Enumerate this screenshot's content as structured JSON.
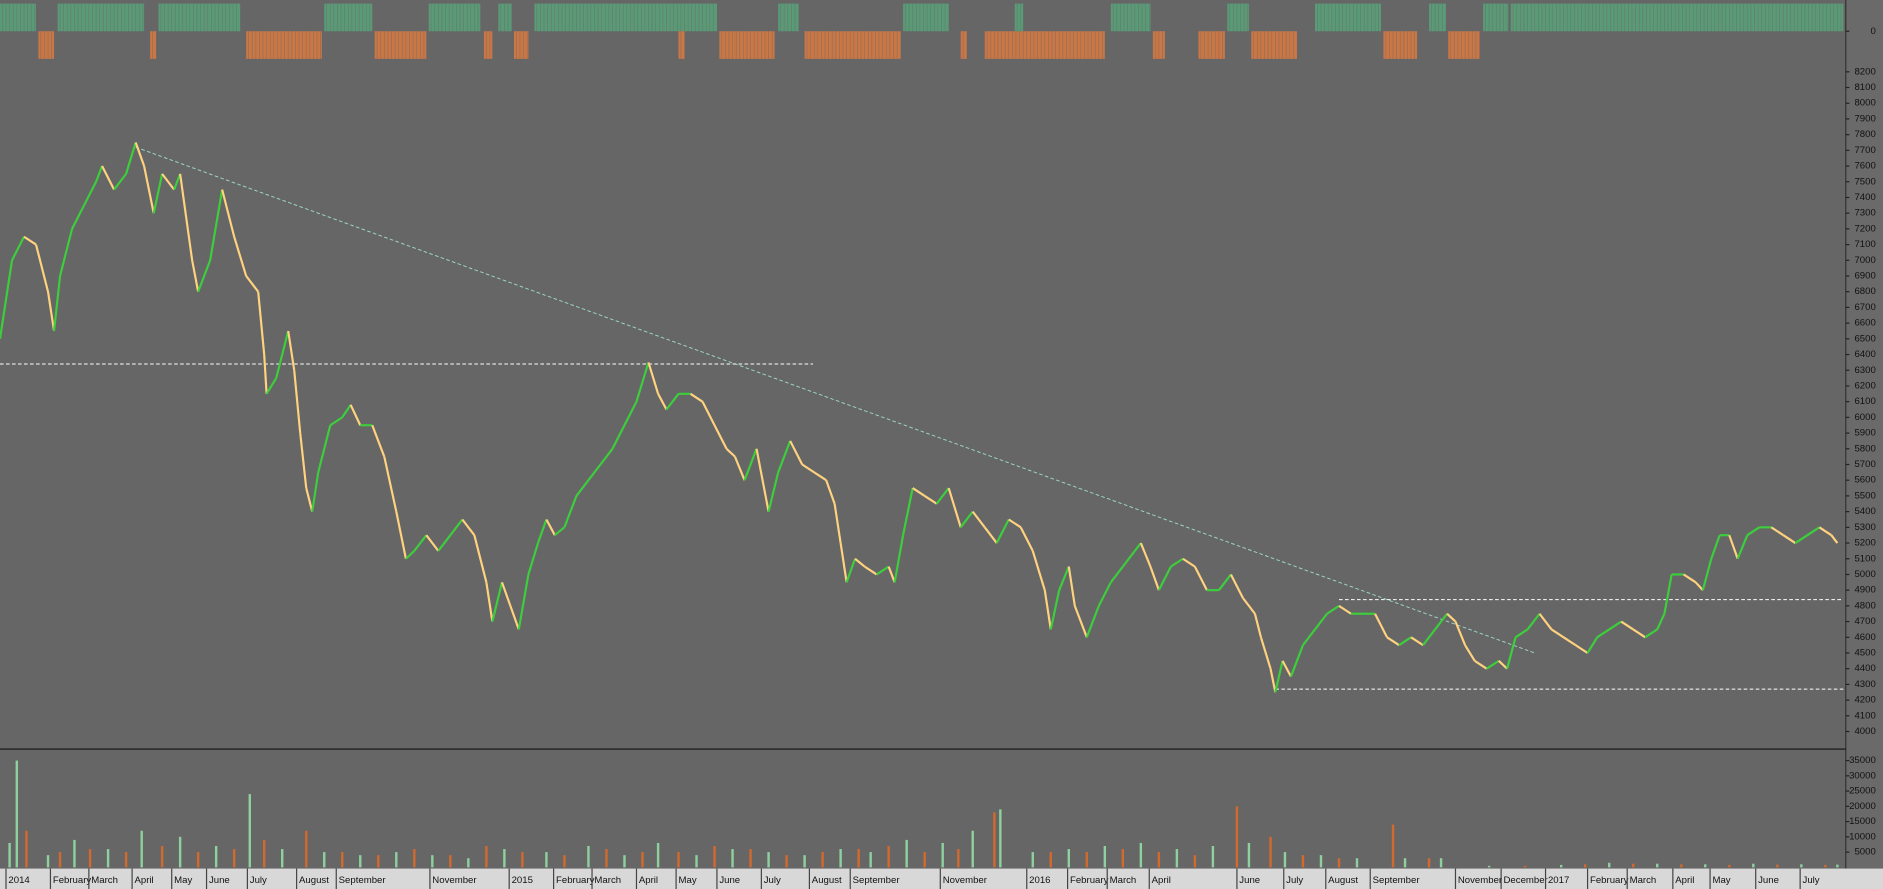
{
  "chart_data": [
    {
      "type": "signal",
      "panel": "top",
      "ylim": [
        -1,
        1
      ],
      "yticks": [
        0
      ],
      "up_color": "#5a9e78",
      "down_color": "#d27843",
      "ranges": [
        {
          "x": [
            0,
            30
          ],
          "value": 1
        },
        {
          "x": [
            32,
            45
          ],
          "value": -1
        },
        {
          "x": [
            48,
            120
          ],
          "value": 1
        },
        {
          "x": [
            125,
            130
          ],
          "value": -1
        },
        {
          "x": [
            132,
            200
          ],
          "value": 1
        },
        {
          "x": [
            205,
            268
          ],
          "value": -1
        },
        {
          "x": [
            270,
            310
          ],
          "value": 1
        },
        {
          "x": [
            312,
            355
          ],
          "value": -1
        },
        {
          "x": [
            357,
            400
          ],
          "value": 1
        },
        {
          "x": [
            403,
            410
          ],
          "value": -1
        },
        {
          "x": [
            415,
            426
          ],
          "value": 1
        },
        {
          "x": [
            428,
            440
          ],
          "value": -1
        },
        {
          "x": [
            445,
            597
          ],
          "value": 1
        },
        {
          "x": [
            565,
            570
          ],
          "value": -1
        },
        {
          "x": [
            599,
            645
          ],
          "value": -1
        },
        {
          "x": [
            648,
            665
          ],
          "value": 1
        },
        {
          "x": [
            670,
            750
          ],
          "value": -1
        },
        {
          "x": [
            752,
            790
          ],
          "value": 1
        },
        {
          "x": [
            800,
            805
          ],
          "value": -1
        },
        {
          "x": [
            820,
            920
          ],
          "value": -1
        },
        {
          "x": [
            845,
            852
          ],
          "value": 1
        },
        {
          "x": [
            925,
            958
          ],
          "value": 1
        },
        {
          "x": [
            960,
            970
          ],
          "value": -1
        },
        {
          "x": [
            998,
            1020
          ],
          "value": -1
        },
        {
          "x": [
            1022,
            1040
          ],
          "value": 1
        },
        {
          "x": [
            1042,
            1080
          ],
          "value": -1
        },
        {
          "x": [
            1095,
            1150
          ],
          "value": 1
        },
        {
          "x": [
            1152,
            1180
          ],
          "value": -1
        },
        {
          "x": [
            1190,
            1204
          ],
          "value": 1
        },
        {
          "x": [
            1206,
            1232
          ],
          "value": -1
        },
        {
          "x": [
            1235,
            1256
          ],
          "value": 1
        },
        {
          "x": [
            1258,
            1535
          ],
          "value": 1
        }
      ]
    },
    {
      "type": "price",
      "panel": "main",
      "ylim": [
        3900,
        8290
      ],
      "xlim": [
        0,
        1537
      ],
      "yticks": [
        4000,
        4100,
        4200,
        4300,
        4400,
        4500,
        4600,
        4700,
        4800,
        4900,
        5000,
        5100,
        5200,
        5300,
        5400,
        5500,
        5600,
        5700,
        5800,
        5900,
        6000,
        6100,
        6200,
        6300,
        6400,
        6500,
        6600,
        6700,
        6800,
        6900,
        7000,
        7100,
        7200,
        7300,
        7400,
        7500,
        7600,
        7700,
        7800,
        7900,
        8000,
        8100,
        8200
      ],
      "up_color": "#3ccf3c",
      "down_color": "#ffd27f",
      "x": [
        0,
        10,
        20,
        30,
        40,
        45,
        50,
        60,
        70,
        80,
        85,
        95,
        105,
        113,
        120,
        128,
        135,
        145,
        150,
        160,
        165,
        175,
        185,
        195,
        205,
        215,
        220,
        222,
        230,
        240,
        245,
        250,
        255,
        260,
        265,
        275,
        285,
        292,
        300,
        310,
        320,
        330,
        338,
        345,
        355,
        365,
        375,
        385,
        395,
        405,
        410,
        418,
        425,
        432,
        440,
        448,
        455,
        462,
        470,
        480,
        490,
        500,
        510,
        520,
        530,
        540,
        548,
        555,
        565,
        575,
        585,
        595,
        605,
        612,
        620,
        630,
        640,
        648,
        658,
        668,
        678,
        688,
        695,
        700,
        705,
        712,
        720,
        730,
        740,
        745,
        752,
        760,
        770,
        780,
        790,
        800,
        810,
        820,
        830,
        840,
        850,
        860,
        870,
        875,
        882,
        890,
        895,
        905,
        915,
        925,
        935,
        945,
        950,
        958,
        965,
        975,
        985,
        995,
        1005,
        1015,
        1025,
        1035,
        1045,
        1050,
        1058,
        1062,
        1068,
        1075,
        1085,
        1095,
        1105,
        1115,
        1125,
        1135,
        1145,
        1155,
        1165,
        1175,
        1185,
        1195,
        1205,
        1212,
        1220,
        1228,
        1238,
        1248,
        1255,
        1262,
        1272,
        1282,
        1292,
        1302,
        1312,
        1322,
        1330,
        1340,
        1350,
        1360,
        1370,
        1380,
        1386,
        1392,
        1402,
        1412,
        1418,
        1425,
        1432,
        1440,
        1447,
        1455,
        1465,
        1475,
        1485,
        1495,
        1505,
        1515,
        1525,
        1530
      ],
      "values": [
        6500,
        7000,
        7150,
        7100,
        6800,
        6550,
        6900,
        7200,
        7350,
        7500,
        7600,
        7450,
        7550,
        7750,
        7600,
        7300,
        7550,
        7450,
        7550,
        7000,
        6800,
        7000,
        7450,
        7150,
        6900,
        6800,
        6400,
        6150,
        6250,
        6550,
        6300,
        5900,
        5550,
        5400,
        5650,
        5950,
        6000,
        6080,
        5950,
        5950,
        5750,
        5400,
        5100,
        5150,
        5250,
        5150,
        5250,
        5350,
        5250,
        4950,
        4700,
        4950,
        4800,
        4650,
        5000,
        5200,
        5350,
        5250,
        5300,
        5500,
        5600,
        5700,
        5800,
        5950,
        6100,
        6350,
        6150,
        6050,
        6150,
        6150,
        6100,
        5950,
        5800,
        5750,
        5600,
        5800,
        5400,
        5650,
        5850,
        5700,
        5650,
        5600,
        5450,
        5200,
        4950,
        5100,
        5050,
        5000,
        5050,
        4950,
        5250,
        5550,
        5500,
        5450,
        5550,
        5300,
        5400,
        5300,
        5200,
        5350,
        5300,
        5150,
        4900,
        4650,
        4900,
        5050,
        4800,
        4600,
        4800,
        4950,
        5050,
        5150,
        5200,
        5050,
        4900,
        5050,
        5100,
        5050,
        4900,
        4900,
        5000,
        4850,
        4750,
        4600,
        4400,
        4250,
        4450,
        4350,
        4550,
        4650,
        4750,
        4800,
        4750,
        4750,
        4750,
        4600,
        4550,
        4600,
        4550,
        4650,
        4750,
        4700,
        4550,
        4450,
        4400,
        4450,
        4400,
        4600,
        4650,
        4750,
        4650,
        4600,
        4550,
        4500,
        4600,
        4650,
        4700,
        4650,
        4600,
        4650,
        4750,
        5000,
        5000,
        4950,
        4900,
        5100,
        5250,
        5250,
        5100,
        5250,
        5300,
        5300,
        5250,
        5200,
        5250,
        5300,
        5250,
        5200
      ],
      "lines": [
        {
          "x": [
            113,
            1278
          ],
          "y": [
            7720,
            4500
          ],
          "color": "#9fd6c8"
        },
        {
          "x": [
            0,
            677
          ],
          "y": [
            6340,
            6340
          ],
          "color": "#ffffff"
        },
        {
          "x": [
            1115,
            1535
          ],
          "y": [
            4840,
            4840
          ],
          "color": "#ffffff"
        },
        {
          "x": [
            1062,
            1535
          ],
          "y": [
            4270,
            4270
          ],
          "color": "#ffffff"
        }
      ],
      "xticks": [
        {
          "value": 5,
          "label": "2014"
        },
        {
          "value": 42,
          "label": "February"
        },
        {
          "value": 74,
          "label": "March"
        },
        {
          "value": 110,
          "label": "April"
        },
        {
          "value": 143,
          "label": "May"
        },
        {
          "value": 172,
          "label": "June"
        },
        {
          "value": 206,
          "label": "July"
        },
        {
          "value": 247,
          "label": "August"
        },
        {
          "value": 280,
          "label": "September"
        },
        {
          "value": 358,
          "label": "November"
        },
        {
          "value": 424,
          "label": "2015"
        },
        {
          "value": 461,
          "label": "February"
        },
        {
          "value": 493,
          "label": "March"
        },
        {
          "value": 530,
          "label": "April"
        },
        {
          "value": 563,
          "label": "May"
        },
        {
          "value": 597,
          "label": "June"
        },
        {
          "value": 634,
          "label": "July"
        },
        {
          "value": 674,
          "label": "August"
        },
        {
          "value": 708,
          "label": "September"
        },
        {
          "value": 783,
          "label": "November"
        },
        {
          "value": 855,
          "label": "2016"
        },
        {
          "value": 889,
          "label": "February"
        },
        {
          "value": 922,
          "label": "March"
        },
        {
          "value": 957,
          "label": "April"
        },
        {
          "value": 1030,
          "label": "June"
        },
        {
          "value": 1069,
          "label": "July"
        },
        {
          "value": 1104,
          "label": "August"
        },
        {
          "value": 1141,
          "label": "September"
        },
        {
          "value": 1212,
          "label": "November"
        },
        {
          "value": 1250,
          "label": "December"
        },
        {
          "value": 1287,
          "label": "2017"
        },
        {
          "value": 1322,
          "label": "February"
        },
        {
          "value": 1355,
          "label": "March"
        },
        {
          "value": 1393,
          "label": "April"
        },
        {
          "value": 1424,
          "label": "May"
        },
        {
          "value": 1462,
          "label": "June"
        },
        {
          "value": 1499,
          "label": "July"
        }
      ]
    },
    {
      "type": "volume",
      "panel": "bottom",
      "ylim": [
        0,
        37000
      ],
      "yticks": [
        5000,
        10000,
        15000,
        20000,
        25000,
        30000,
        35000
      ],
      "series": [
        {
          "color": "#8fd19e",
          "x": [
            8,
            14,
            40,
            62,
            90,
            118,
            150,
            180,
            208,
            235,
            270,
            300,
            330,
            360,
            390,
            420,
            455,
            490,
            520,
            548,
            580,
            610,
            640,
            670,
            700,
            725,
            755,
            785,
            810,
            833,
            860,
            890,
            920,
            950,
            980,
            1010,
            1040,
            1070,
            1100,
            1130,
            1170,
            1200,
            1240,
            1300,
            1340,
            1380,
            1420,
            1460,
            1500,
            1530
          ],
          "values": [
            8000,
            35000,
            4000,
            9000,
            6000,
            12000,
            10000,
            7000,
            24000,
            6000,
            5000,
            4000,
            5000,
            4000,
            3000,
            6000,
            5000,
            7000,
            4000,
            8000,
            4000,
            6000,
            5000,
            4000,
            6000,
            5000,
            9000,
            8000,
            12000,
            19000,
            5000,
            6000,
            7000,
            8000,
            6000,
            7000,
            8000,
            5000,
            4000,
            3000,
            3000,
            3000,
            500,
            800,
            1500,
            1200,
            1000,
            1200,
            1000,
            900
          ]
        },
        {
          "color": "#d2692d",
          "x": [
            22,
            50,
            75,
            105,
            135,
            165,
            195,
            220,
            255,
            285,
            315,
            345,
            375,
            405,
            435,
            470,
            505,
            535,
            565,
            595,
            625,
            655,
            685,
            715,
            740,
            770,
            798,
            828,
            875,
            905,
            935,
            965,
            995,
            1030,
            1058,
            1085,
            1115,
            1160,
            1190,
            1270,
            1320,
            1360,
            1400,
            1440,
            1480,
            1520
          ],
          "values": [
            12000,
            5000,
            6000,
            5000,
            7000,
            5000,
            6000,
            9000,
            12000,
            5000,
            4000,
            6000,
            4000,
            7000,
            5000,
            4000,
            6000,
            5000,
            5000,
            7000,
            6000,
            4000,
            5000,
            6000,
            7000,
            5000,
            6000,
            18000,
            5000,
            5000,
            6000,
            5000,
            4000,
            20000,
            10000,
            4000,
            3000,
            14000,
            3000,
            500,
            1000,
            1200,
            1000,
            800,
            900,
            800
          ]
        }
      ]
    }
  ]
}
